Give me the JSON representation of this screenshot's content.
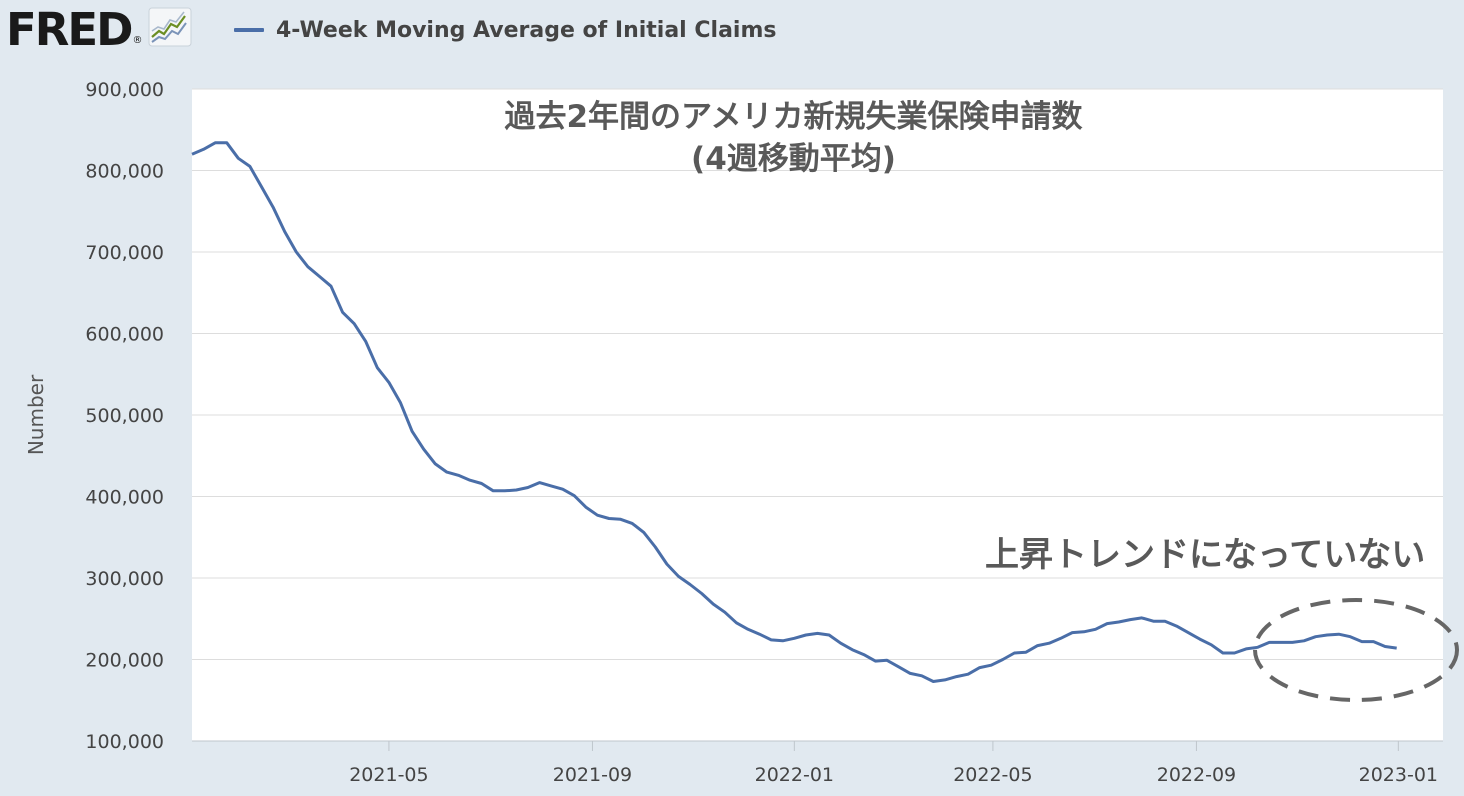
{
  "header": {
    "logo_text": "FRED",
    "logo_registered": "®",
    "logo_icon": "chart-trend-icon",
    "legend_label": "4-Week Moving Average of Initial Claims",
    "legend_color": "#4a6ea8"
  },
  "chart_data": {
    "type": "line",
    "title": "過去2年間のアメリカ新規失業保険申請数",
    "subtitle": "(4週移動平均)",
    "ylabel": "Number",
    "xlabel": "",
    "ylim": [
      100000,
      900000
    ],
    "yticks": [
      100000,
      200000,
      300000,
      400000,
      500000,
      600000,
      700000,
      800000,
      900000
    ],
    "ytick_labels": [
      "100,000",
      "200,000",
      "300,000",
      "400,000",
      "500,000",
      "600,000",
      "700,000",
      "800,000",
      "900,000"
    ],
    "xlim": [
      "2021-01-02",
      "2023-01-28"
    ],
    "xticks": [
      "2021-05-01",
      "2021-09-01",
      "2022-01-01",
      "2022-05-01",
      "2022-09-01",
      "2023-01-01"
    ],
    "xtick_labels": [
      "2021-05",
      "2021-09",
      "2022-01",
      "2022-05",
      "2022-09",
      "2023-01"
    ],
    "grid": "horizontal",
    "annotation": {
      "text": "上昇トレンドになっていない",
      "shape": "dashed-ellipse"
    },
    "colors": {
      "line": "#4a6ea8",
      "plot_background": "#ffffff",
      "page_background": "#e1e9f0",
      "grid": "#dddddd"
    },
    "series": [
      {
        "name": "4-Week Moving Average of Initial Claims",
        "points": [
          [
            "2021-01-02",
            820000
          ],
          [
            "2021-01-09",
            826000
          ],
          [
            "2021-01-16",
            834000
          ],
          [
            "2021-01-23",
            834000
          ],
          [
            "2021-01-30",
            815000
          ],
          [
            "2021-02-06",
            805000
          ],
          [
            "2021-02-13",
            780000
          ],
          [
            "2021-02-20",
            755000
          ],
          [
            "2021-02-27",
            725000
          ],
          [
            "2021-03-06",
            700000
          ],
          [
            "2021-03-13",
            682000
          ],
          [
            "2021-03-20",
            670000
          ],
          [
            "2021-03-27",
            658000
          ],
          [
            "2021-04-03",
            626000
          ],
          [
            "2021-04-10",
            612000
          ],
          [
            "2021-04-17",
            590000
          ],
          [
            "2021-04-24",
            558000
          ],
          [
            "2021-05-01",
            540000
          ],
          [
            "2021-05-08",
            515000
          ],
          [
            "2021-05-15",
            480000
          ],
          [
            "2021-05-22",
            458000
          ],
          [
            "2021-05-29",
            440000
          ],
          [
            "2021-06-05",
            430000
          ],
          [
            "2021-06-12",
            426000
          ],
          [
            "2021-06-19",
            420000
          ],
          [
            "2021-06-26",
            416000
          ],
          [
            "2021-07-03",
            407000
          ],
          [
            "2021-07-10",
            407000
          ],
          [
            "2021-07-17",
            408000
          ],
          [
            "2021-07-24",
            411000
          ],
          [
            "2021-07-31",
            417000
          ],
          [
            "2021-08-07",
            413000
          ],
          [
            "2021-08-14",
            409000
          ],
          [
            "2021-08-21",
            401000
          ],
          [
            "2021-08-28",
            387000
          ],
          [
            "2021-09-04",
            377000
          ],
          [
            "2021-09-11",
            373000
          ],
          [
            "2021-09-18",
            372000
          ],
          [
            "2021-09-25",
            367000
          ],
          [
            "2021-10-02",
            356000
          ],
          [
            "2021-10-09",
            338000
          ],
          [
            "2021-10-16",
            317000
          ],
          [
            "2021-10-23",
            302000
          ],
          [
            "2021-10-30",
            292000
          ],
          [
            "2021-11-06",
            281000
          ],
          [
            "2021-11-13",
            268000
          ],
          [
            "2021-11-20",
            258000
          ],
          [
            "2021-11-27",
            245000
          ],
          [
            "2021-12-04",
            237000
          ],
          [
            "2021-12-11",
            231000
          ],
          [
            "2021-12-18",
            224000
          ],
          [
            "2021-12-25",
            223000
          ],
          [
            "2022-01-01",
            226000
          ],
          [
            "2022-01-08",
            230000
          ],
          [
            "2022-01-15",
            232000
          ],
          [
            "2022-01-22",
            230000
          ],
          [
            "2022-01-29",
            220000
          ],
          [
            "2022-02-05",
            212000
          ],
          [
            "2022-02-12",
            206000
          ],
          [
            "2022-02-19",
            198000
          ],
          [
            "2022-02-26",
            199000
          ],
          [
            "2022-03-05",
            191000
          ],
          [
            "2022-03-12",
            183000
          ],
          [
            "2022-03-19",
            180000
          ],
          [
            "2022-03-26",
            173000
          ],
          [
            "2022-04-02",
            175000
          ],
          [
            "2022-04-09",
            179000
          ],
          [
            "2022-04-16",
            182000
          ],
          [
            "2022-04-23",
            190000
          ],
          [
            "2022-04-30",
            193000
          ],
          [
            "2022-05-07",
            200000
          ],
          [
            "2022-05-14",
            208000
          ],
          [
            "2022-05-21",
            209000
          ],
          [
            "2022-05-28",
            217000
          ],
          [
            "2022-06-04",
            220000
          ],
          [
            "2022-06-11",
            226000
          ],
          [
            "2022-06-18",
            233000
          ],
          [
            "2022-06-25",
            234000
          ],
          [
            "2022-07-02",
            237000
          ],
          [
            "2022-07-09",
            244000
          ],
          [
            "2022-07-16",
            246000
          ],
          [
            "2022-07-23",
            249000
          ],
          [
            "2022-07-30",
            251000
          ],
          [
            "2022-08-06",
            247000
          ],
          [
            "2022-08-13",
            247000
          ],
          [
            "2022-08-20",
            241000
          ],
          [
            "2022-08-27",
            233000
          ],
          [
            "2022-09-03",
            225000
          ],
          [
            "2022-09-10",
            218000
          ],
          [
            "2022-09-17",
            208000
          ],
          [
            "2022-09-24",
            208000
          ],
          [
            "2022-10-01",
            213000
          ],
          [
            "2022-10-08",
            215000
          ],
          [
            "2022-10-15",
            221000
          ],
          [
            "2022-10-22",
            221000
          ],
          [
            "2022-10-29",
            221000
          ],
          [
            "2022-11-05",
            223000
          ],
          [
            "2022-11-12",
            228000
          ],
          [
            "2022-11-19",
            230000
          ],
          [
            "2022-11-26",
            231000
          ],
          [
            "2022-12-03",
            228000
          ],
          [
            "2022-12-10",
            222000
          ],
          [
            "2022-12-17",
            222000
          ],
          [
            "2022-12-24",
            216000
          ],
          [
            "2022-12-31",
            214000
          ]
        ]
      }
    ]
  }
}
